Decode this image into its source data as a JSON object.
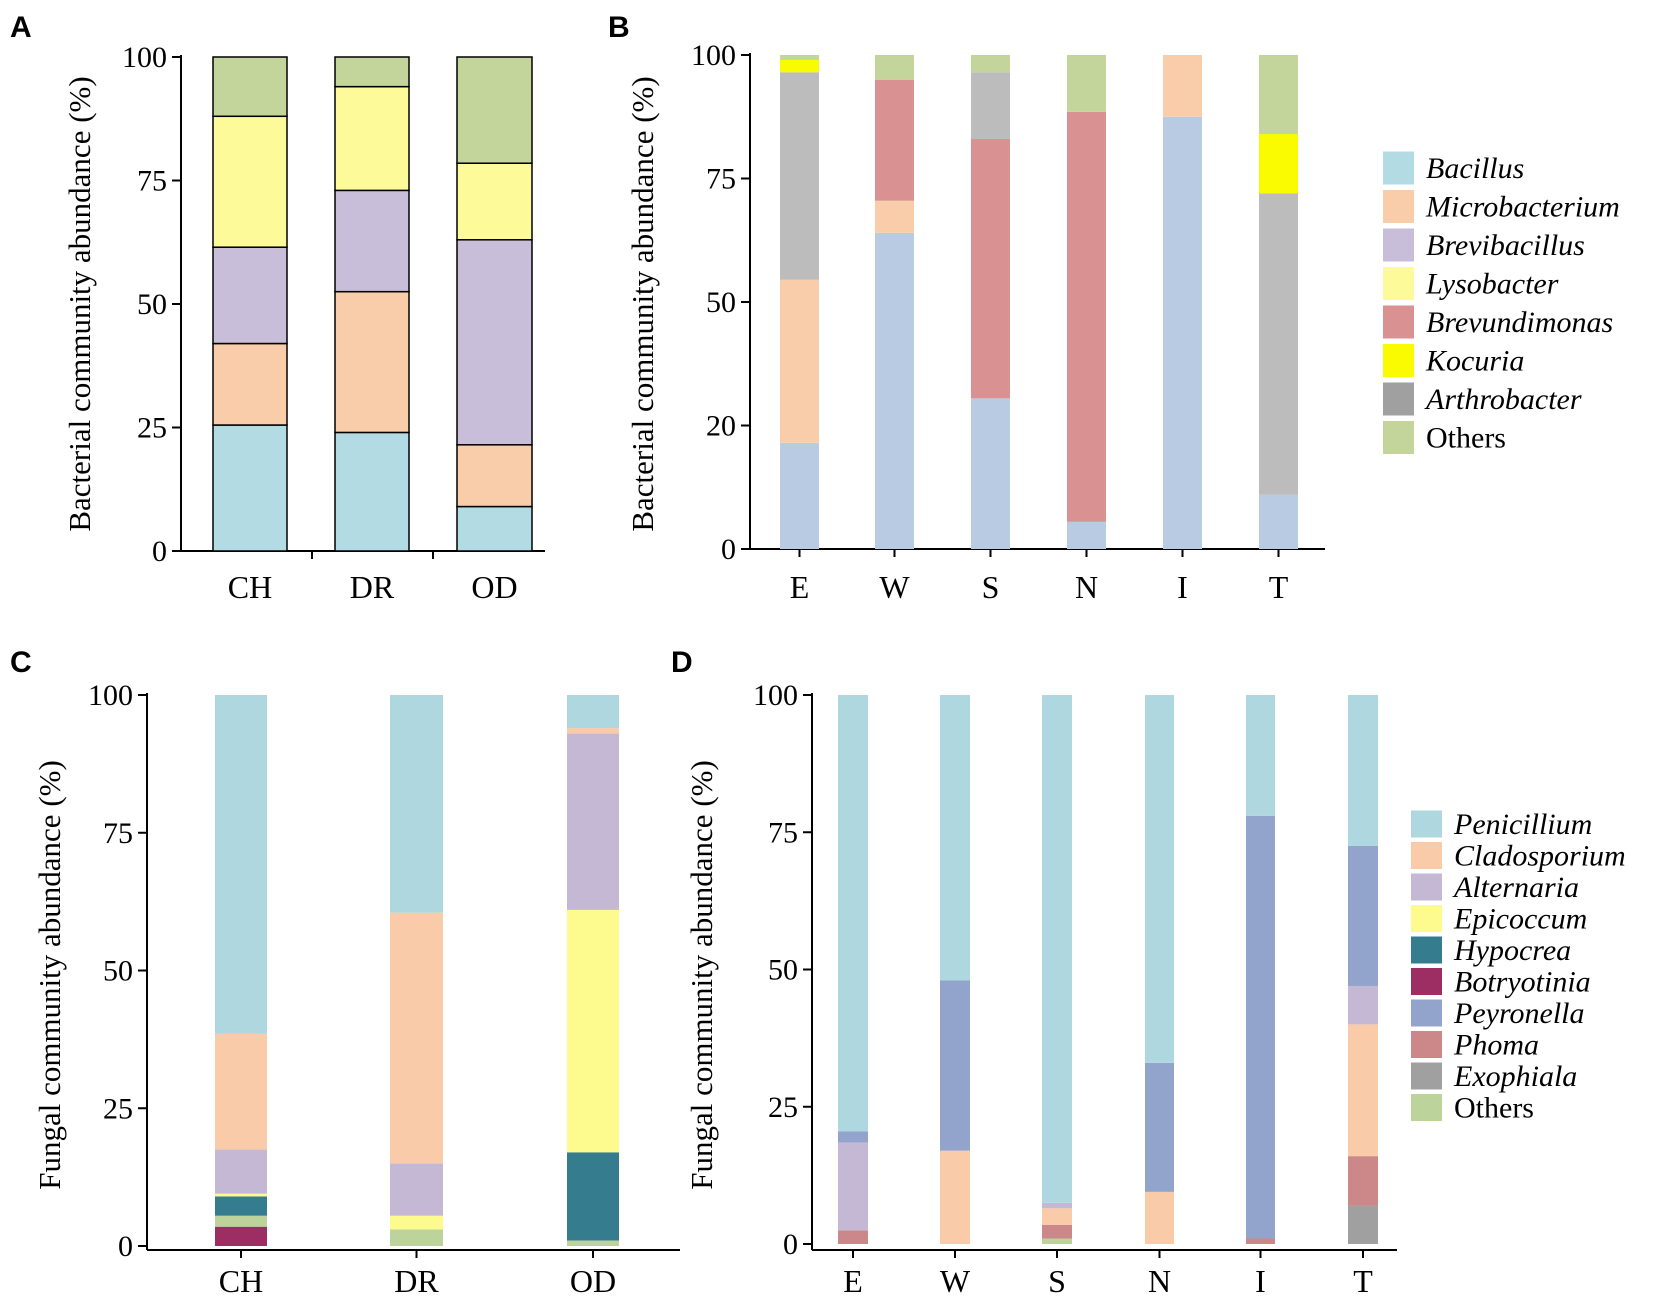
{
  "figure": {
    "title": ""
  },
  "colors": {
    "Bacillus": "#b3dbe4",
    "Microbacterium": "#f9cdaa",
    "Brevibacillus": "#c9bed9",
    "Lysobacter": "#fdfa99",
    "Brevundimonas": "#d99191",
    "Kocuria": "#fafa00",
    "Arthrobacter": "#bcbcbc",
    "Others": "#c3d59b",
    "BacillusB": "#b8cbe3",
    "ArthrobacterLegend": "#a0a0a0",
    "Penicillium": "#aed7e0",
    "Cladosporium": "#f9cba9",
    "Alternaria": "#c5b8d4",
    "Epicoccum": "#fdfb8e",
    "Hypocrea": "#357d8e",
    "Botryotinia": "#9c2e63",
    "Peyronella": "#92a3cc",
    "Phoma": "#cc8888",
    "Exophiala": "#a0a0a0",
    "FOthers": "#bcd49b"
  },
  "chart_data": [
    {
      "panel": "A",
      "type": "bar",
      "stacked": true,
      "title": "",
      "xlabel": "",
      "ylabel": "Bacterial community abundance (%)",
      "ylim": [
        0,
        100
      ],
      "yticks": [
        "0",
        "25",
        "50",
        "75",
        "100"
      ],
      "categories": [
        "CH",
        "DR",
        "OD"
      ],
      "bar_outline": true,
      "series": [
        {
          "name": "Bacillus",
          "values": [
            25.5,
            24,
            9
          ]
        },
        {
          "name": "Microbacterium",
          "values": [
            16.5,
            28.5,
            12.5
          ]
        },
        {
          "name": "Brevibacillus",
          "values": [
            19.5,
            20.5,
            41.5
          ]
        },
        {
          "name": "Lysobacter",
          "values": [
            26.5,
            21,
            15.5
          ]
        },
        {
          "name": "Others",
          "values": [
            12,
            6,
            21.5
          ]
        }
      ]
    },
    {
      "panel": "B",
      "type": "bar",
      "stacked": true,
      "title": "",
      "xlabel": "",
      "ylabel": "Bacterial community abundance (%)",
      "ylim": [
        0,
        100
      ],
      "yticks": [
        "0",
        "20",
        "50",
        "75",
        "100"
      ],
      "categories": [
        "E",
        "W",
        "S",
        "N",
        "I",
        "T"
      ],
      "bar_outline": false,
      "series": [
        {
          "name": "Bacillus",
          "values": [
            21.5,
            64,
            30.5,
            5.5,
            87.5,
            11
          ]
        },
        {
          "name": "Microbacterium",
          "values": [
            33,
            6.5,
            0,
            0,
            12.5,
            0
          ]
        },
        {
          "name": "Brevundimonas",
          "values": [
            0,
            24.5,
            52.5,
            83,
            0,
            0
          ]
        },
        {
          "name": "Arthrobacter",
          "values": [
            42,
            0,
            13.5,
            0,
            0,
            61
          ]
        },
        {
          "name": "Kocuria",
          "values": [
            2.5,
            0,
            0,
            0,
            0,
            12
          ]
        },
        {
          "name": "Others",
          "values": [
            1,
            5,
            3.5,
            11.5,
            0,
            16
          ]
        }
      ],
      "legend": [
        "Bacillus",
        "Microbacterium",
        "Brevibacillus",
        "Lysobacter",
        "Brevundimonas",
        "Kocuria",
        "Arthrobacter",
        "Others"
      ]
    },
    {
      "panel": "C",
      "type": "bar",
      "stacked": true,
      "title": "",
      "xlabel": "",
      "ylabel": "Fungal community abundance (%)",
      "ylim": [
        0,
        100
      ],
      "yticks": [
        "0",
        "25",
        "50",
        "75",
        "100"
      ],
      "categories": [
        "CH",
        "DR",
        "OD"
      ],
      "bar_outline": false,
      "series": [
        {
          "name": "Botryotinia",
          "values": [
            3.5,
            0,
            0
          ]
        },
        {
          "name": "Others",
          "values": [
            2,
            3,
            1
          ]
        },
        {
          "name": "Hypocrea",
          "values": [
            3.5,
            0,
            16
          ]
        },
        {
          "name": "Epicoccum",
          "values": [
            0.5,
            2.5,
            44
          ]
        },
        {
          "name": "Alternaria",
          "values": [
            8,
            9.5,
            32
          ]
        },
        {
          "name": "Cladosporium",
          "values": [
            21,
            45.5,
            1
          ]
        },
        {
          "name": "Penicillium",
          "values": [
            61.5,
            39.5,
            6
          ]
        }
      ]
    },
    {
      "panel": "D",
      "type": "bar",
      "stacked": true,
      "title": "",
      "xlabel": "",
      "ylabel": "Fungal community abundance (%)",
      "ylim": [
        0,
        100
      ],
      "yticks": [
        "0",
        "25",
        "50",
        "75",
        "100"
      ],
      "categories": [
        "E",
        "W",
        "S",
        "N",
        "I",
        "T"
      ],
      "bar_outline": false,
      "series": [
        {
          "name": "Others",
          "values": [
            0,
            0,
            1,
            0,
            0,
            0
          ]
        },
        {
          "name": "Exophiala",
          "values": [
            0,
            0,
            0,
            0,
            0,
            7
          ]
        },
        {
          "name": "Phoma",
          "values": [
            2.5,
            0,
            2.5,
            0,
            1,
            9
          ]
        },
        {
          "name": "Cladosporium",
          "values": [
            0,
            17,
            3,
            9.5,
            0,
            24
          ]
        },
        {
          "name": "Alternaria",
          "values": [
            16,
            0,
            1,
            0,
            0,
            7
          ]
        },
        {
          "name": "Peyronella",
          "values": [
            2,
            31,
            0,
            23.5,
            77,
            25.5
          ]
        },
        {
          "name": "Penicillium",
          "values": [
            79.5,
            52,
            92.5,
            67,
            22,
            27.5
          ]
        }
      ],
      "legend": [
        "Penicillium",
        "Cladosporium",
        "Alternaria",
        "Epicoccum",
        "Hypocrea",
        "Botryotinia",
        "Peyronella",
        "Phoma",
        "Exophiala",
        "Others"
      ]
    }
  ]
}
